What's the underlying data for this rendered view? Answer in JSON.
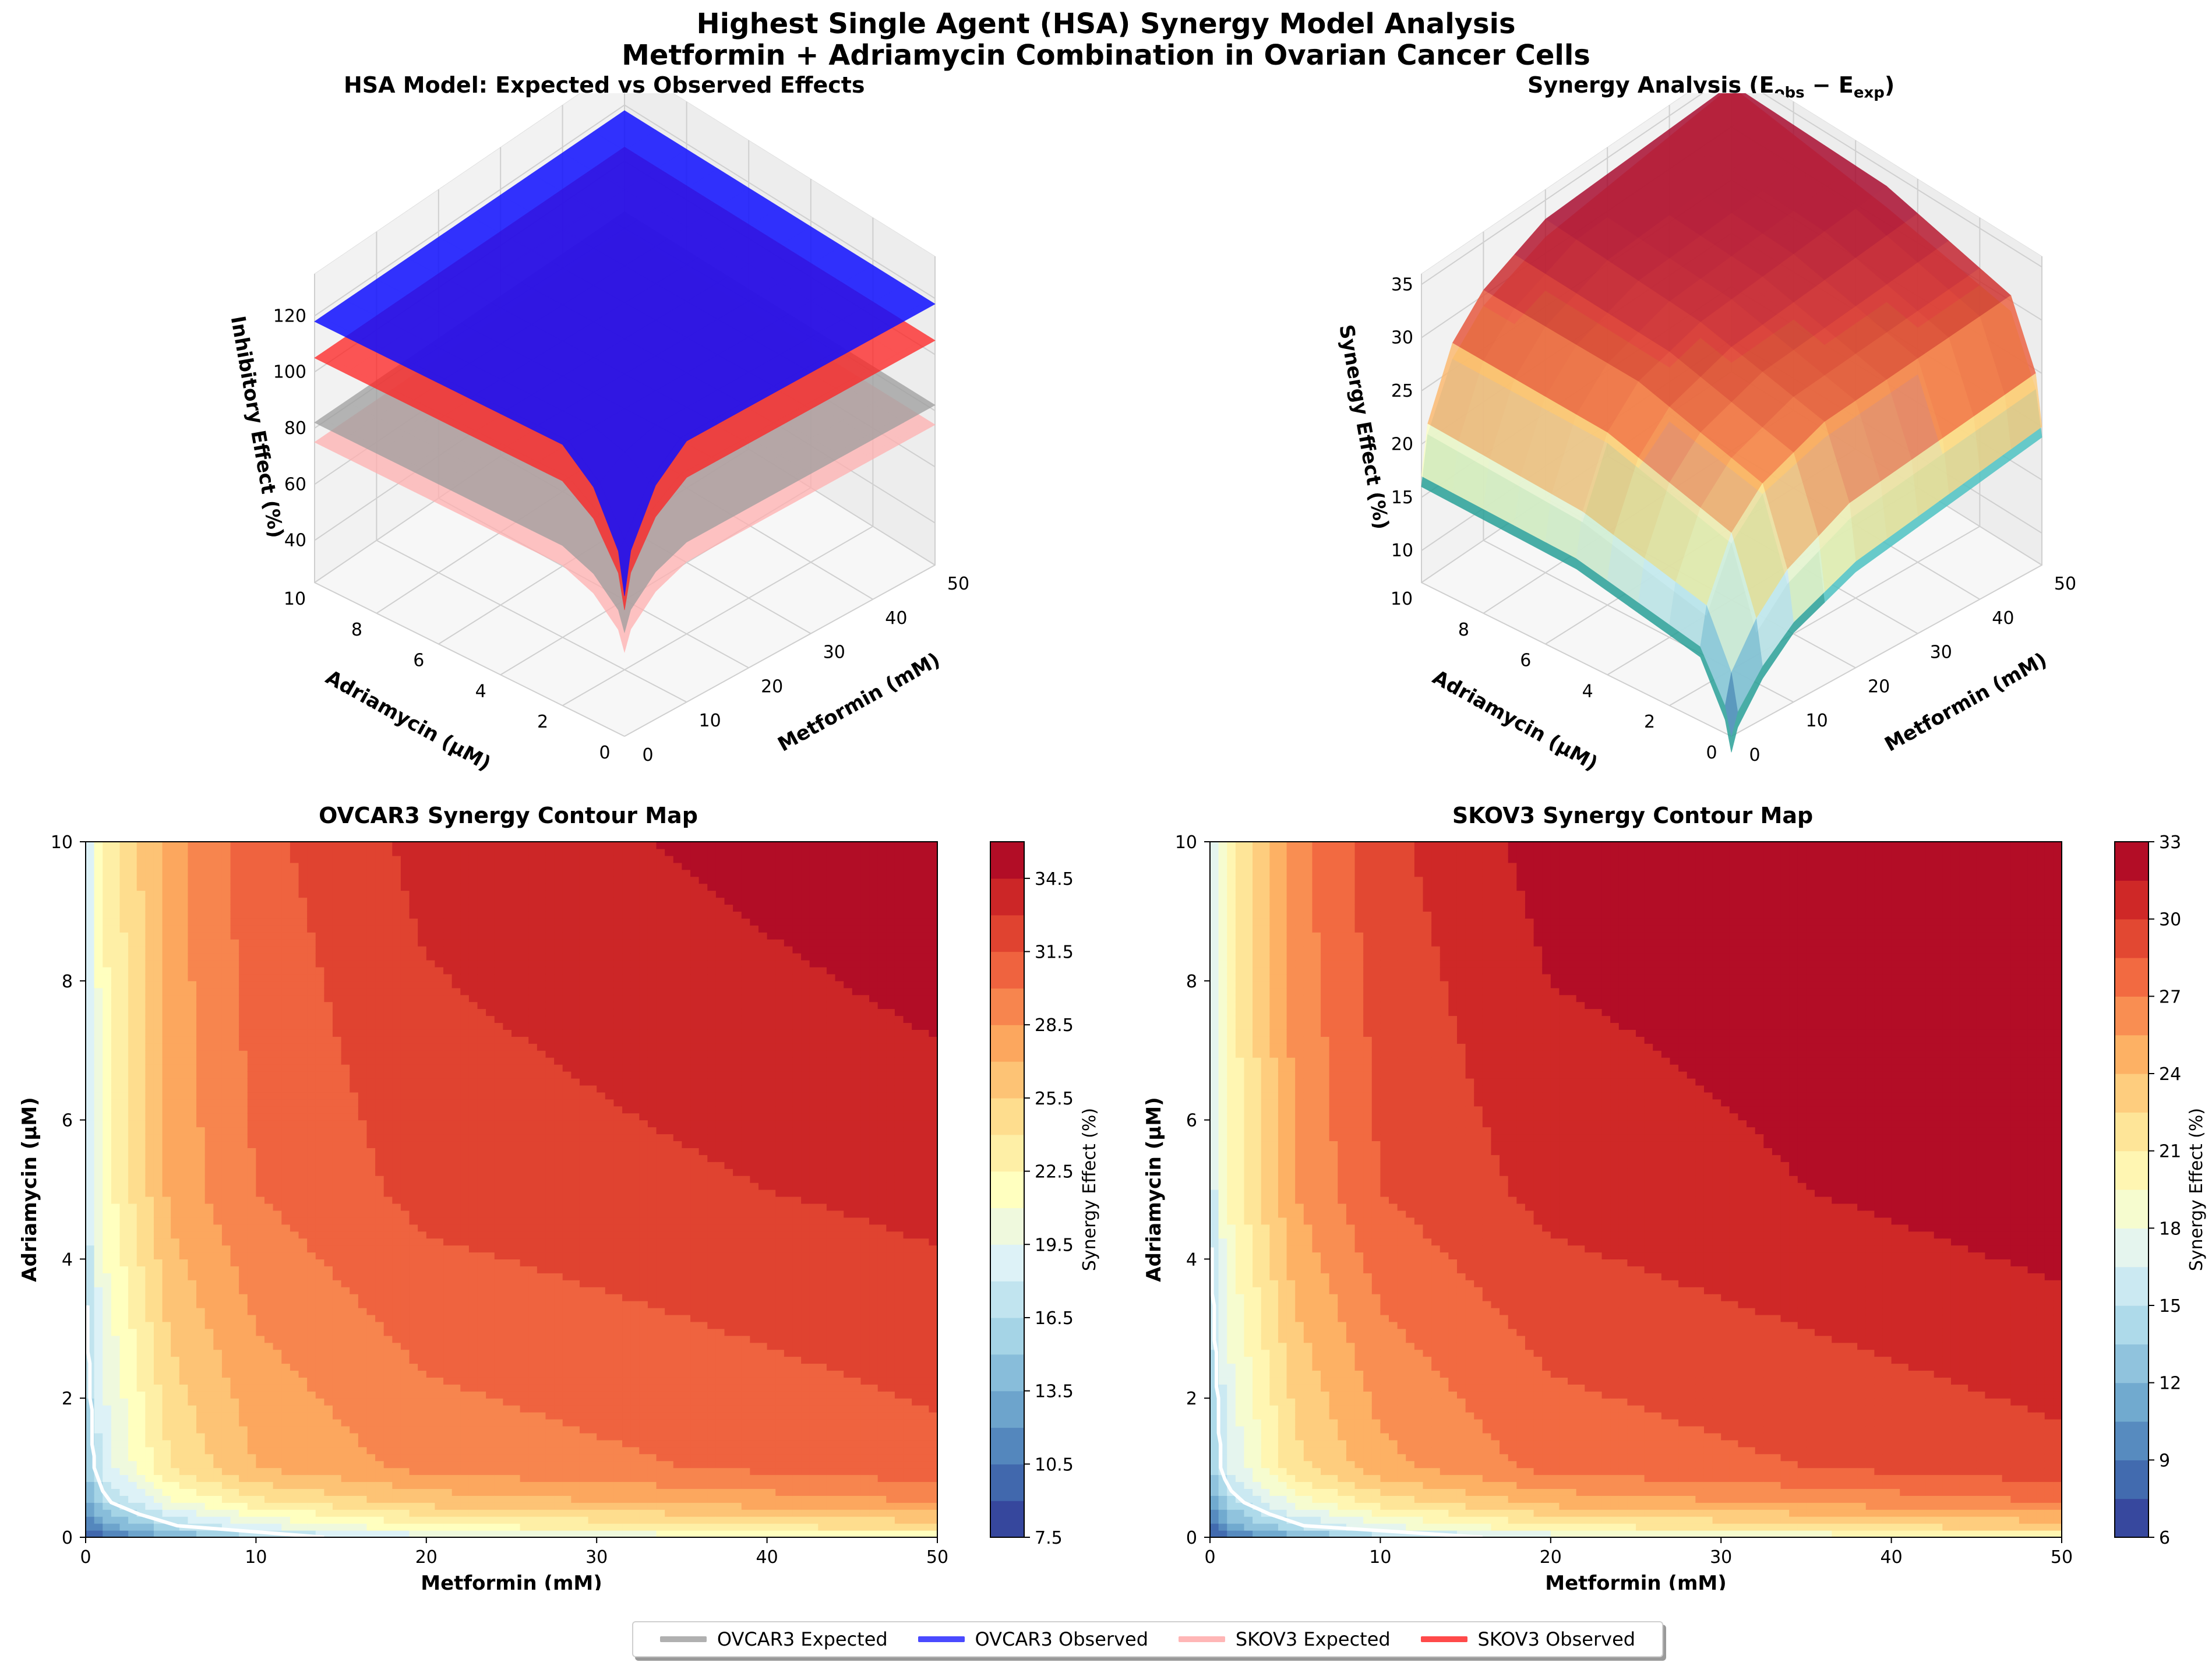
{
  "figure": {
    "title_line1": "Highest Single Agent (HSA) Synergy Model Analysis",
    "title_line2": "Metformin + Adriamycin Combination in Ovarian Cancer Cells"
  },
  "colors": {
    "ovcar3_expected": "#9e9e9e",
    "ovcar3_observed": "#1010ff",
    "skov3_expected": "#ffb0b0",
    "skov3_observed": "#ff2020",
    "contour_line": "#ffffff"
  },
  "legend": {
    "items": [
      {
        "label": "OVCAR3 Expected",
        "color": "#b0b0b0"
      },
      {
        "label": "OVCAR3 Observed",
        "color": "#4a4aff"
      },
      {
        "label": "SKOV3 Expected",
        "color": "#ffb6b6"
      },
      {
        "label": "SKOV3 Observed",
        "color": "#ff4a4a"
      }
    ]
  },
  "chart_data": [
    {
      "id": "hsa3d",
      "type": "surface3d",
      "title": "HSA Model: Expected vs Observed Effects",
      "xlabel": "Metformin (mM)",
      "ylabel": "Adriamycin (μM)",
      "zlabel": "Inhibitory Effect (%)",
      "x_ticks": [
        0,
        10,
        20,
        30,
        40,
        50
      ],
      "y_ticks": [
        0,
        2,
        4,
        6,
        8,
        10
      ],
      "z_ticks": [
        40,
        60,
        80,
        100,
        120
      ],
      "xlim": [
        0,
        50
      ],
      "ylim": [
        0,
        10
      ],
      "zlim": [
        25,
        135
      ],
      "series": [
        {
          "name": "OVCAR3 Expected",
          "plateau": 82,
          "low": 62,
          "color": "#9e9e9e"
        },
        {
          "name": "OVCAR3 Observed",
          "plateau": 118,
          "low": 75,
          "color": "#1010ff"
        },
        {
          "name": "SKOV3 Expected",
          "plateau": 75,
          "low": 55,
          "color": "#ffb0b0"
        },
        {
          "name": "SKOV3 Observed",
          "plateau": 105,
          "low": 70,
          "color": "#ff2020"
        }
      ]
    },
    {
      "id": "syn3d",
      "type": "surface3d",
      "title": "Synergy Analysis (E",
      "title_sub1": "obs",
      "title_mid": " − E",
      "title_sub2": "exp",
      "title_end": ")",
      "xlabel": "Metformin (mM)",
      "ylabel": "Adriamycin (μM)",
      "zlabel": "Synergy Effect (%)",
      "x_ticks": [
        0,
        10,
        20,
        30,
        40,
        50
      ],
      "y_ticks": [
        0,
        2,
        4,
        6,
        8,
        10
      ],
      "z_ticks": [
        10,
        15,
        20,
        25,
        30,
        35
      ],
      "xlim": [
        0,
        50
      ],
      "ylim": [
        0,
        10
      ],
      "zlim": [
        7,
        36
      ]
    },
    {
      "id": "ovcar3",
      "type": "contour",
      "title": "OVCAR3 Synergy Contour Map",
      "xlabel": "Metformin (mM)",
      "ylabel": "Adriamycin (μM)",
      "x_ticks": [
        0,
        10,
        20,
        30,
        40,
        50
      ],
      "y_ticks": [
        0,
        2,
        4,
        6,
        8,
        10
      ],
      "xlim": [
        0,
        50
      ],
      "ylim": [
        0,
        10
      ],
      "colorbar_label": "Synergy Effect (%)",
      "colorbar_min": 7.5,
      "colorbar_max": 36.0,
      "level_step": 1.5,
      "colorbar_ticks": [
        "7.5",
        "10.5",
        "13.5",
        "16.5",
        "19.5",
        "22.5",
        "25.5",
        "28.5",
        "31.5",
        "34.5"
      ],
      "metformin_mM": [
        0,
        1,
        5,
        10,
        20,
        50
      ],
      "adriamycin_uM": [
        0,
        0.1,
        0.5,
        1,
        5,
        10
      ],
      "synergy_grid": [
        [
          7.5,
          9.5,
          12.8,
          15.5,
          18.0,
          21.0
        ],
        [
          9.5,
          12.0,
          15.5,
          18.5,
          21.5,
          24.0
        ],
        [
          12.5,
          16.0,
          20.5,
          23.5,
          26.0,
          28.5
        ],
        [
          15.0,
          18.5,
          24.0,
          27.0,
          29.0,
          31.0
        ],
        [
          17.5,
          21.5,
          27.5,
          30.0,
          32.0,
          33.5
        ],
        [
          18.0,
          22.5,
          28.0,
          31.0,
          33.5,
          35.8
        ]
      ],
      "contour_line_level": 16.5
    },
    {
      "id": "skov3",
      "type": "contour",
      "title": "SKOV3 Synergy Contour Map",
      "xlabel": "Metformin (mM)",
      "ylabel": "Adriamycin (μM)",
      "x_ticks": [
        0,
        10,
        20,
        30,
        40,
        50
      ],
      "y_ticks": [
        0,
        2,
        4,
        6,
        8,
        10
      ],
      "xlim": [
        0,
        50
      ],
      "ylim": [
        0,
        10
      ],
      "colorbar_label": "Synergy Effect (%)",
      "colorbar_min": 6,
      "colorbar_max": 33,
      "level_step": 1.5,
      "colorbar_ticks": [
        "6",
        "9",
        "12",
        "15",
        "18",
        "21",
        "24",
        "27",
        "30",
        "33"
      ],
      "metformin_mM": [
        0,
        1,
        5,
        10,
        20,
        50
      ],
      "adriamycin_uM": [
        0,
        0.1,
        0.5,
        1,
        5,
        10
      ],
      "synergy_grid": [
        [
          6.0,
          8.0,
          11.0,
          13.5,
          16.0,
          19.0
        ],
        [
          8.0,
          10.5,
          14.0,
          17.0,
          20.0,
          22.5
        ],
        [
          10.5,
          14.0,
          18.5,
          21.5,
          24.5,
          27.0
        ],
        [
          13.0,
          16.5,
          22.0,
          25.0,
          27.5,
          29.5
        ],
        [
          15.5,
          19.5,
          25.5,
          28.5,
          30.5,
          32.5
        ],
        [
          16.0,
          20.5,
          26.5,
          29.5,
          32.2,
          33.0
        ]
      ],
      "contour_line_level": 15.0
    }
  ]
}
